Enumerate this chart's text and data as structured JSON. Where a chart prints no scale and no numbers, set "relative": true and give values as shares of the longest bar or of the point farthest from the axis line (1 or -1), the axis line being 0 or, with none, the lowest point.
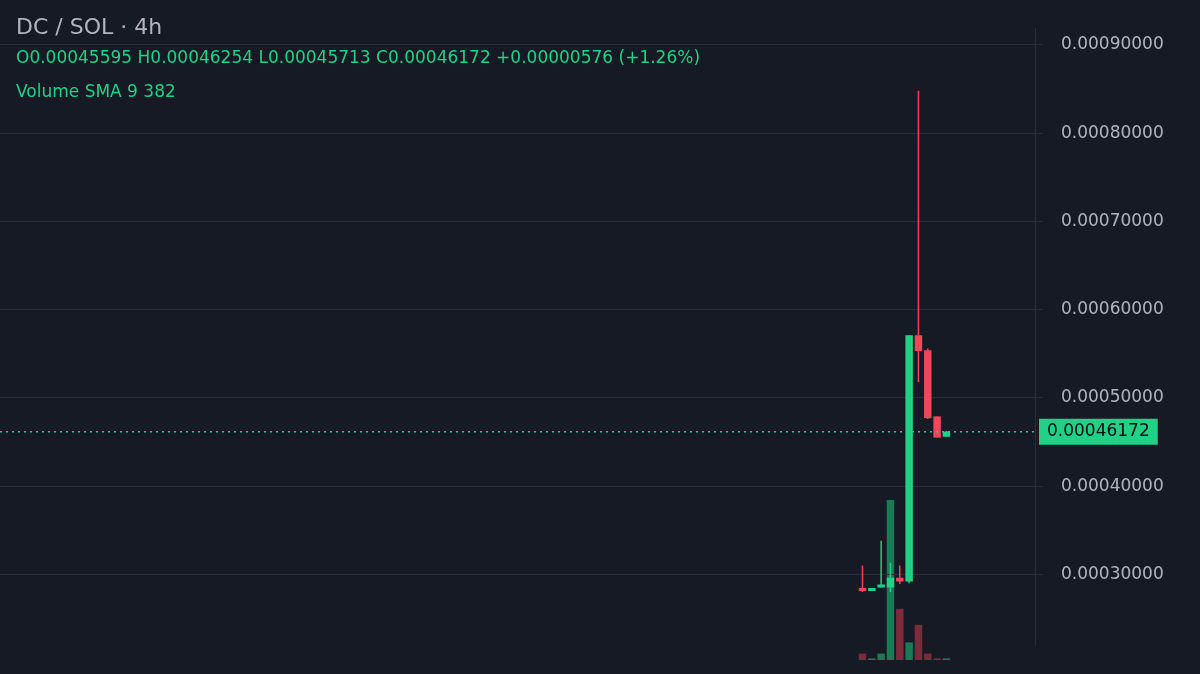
{
  "chart_data": [
    {
      "type": "candlestick",
      "title": "DC / SOL · 4h",
      "annotations": [
        "O0.00045595 H0.00046254 L0.00045713 C0.00046172 +0.00000576 (+1.26%)",
        "Volume SMA 9 382"
      ],
      "categories": [
        null,
        null,
        null,
        null,
        null,
        null,
        null,
        null,
        null,
        null,
        null,
        null,
        null,
        null,
        null,
        null,
        null,
        null,
        null,
        null,
        null,
        null,
        null,
        null,
        null,
        null,
        null,
        null,
        null,
        null,
        null,
        null,
        null,
        null,
        null,
        null,
        null,
        null,
        null,
        null,
        null,
        null,
        null,
        null,
        null,
        null,
        null,
        null,
        null,
        null,
        null,
        null,
        null,
        null,
        null,
        null,
        null,
        null,
        null,
        null,
        null,
        null,
        null,
        null,
        null,
        null,
        null,
        null,
        null,
        null,
        null,
        null,
        null,
        null,
        null,
        null,
        null,
        null,
        null,
        null,
        null,
        null,
        null,
        null,
        null,
        null,
        null,
        null,
        null,
        null,
        null,
        null,
        null,
        null,
        null,
        null,
        null,
        null,
        null,
        null,
        null,
        null,
        null,
        null,
        null,
        null,
        null,
        null,
        null,
        null,
        null
      ],
      "ohlc": [
        null,
        null,
        null,
        null,
        null,
        null,
        null,
        null,
        null,
        null,
        null,
        null,
        null,
        null,
        null,
        null,
        null,
        null,
        null,
        null,
        null,
        null,
        null,
        null,
        null,
        null,
        null,
        null,
        null,
        null,
        null,
        null,
        null,
        null,
        null,
        null,
        null,
        null,
        null,
        null,
        null,
        null,
        null,
        null,
        null,
        null,
        null,
        null,
        null,
        null,
        null,
        null,
        null,
        null,
        null,
        null,
        null,
        null,
        null,
        null,
        null,
        null,
        null,
        null,
        null,
        null,
        null,
        null,
        null,
        null,
        null,
        null,
        null,
        null,
        null,
        null,
        null,
        null,
        null,
        null,
        null,
        null,
        null,
        null,
        null,
        null,
        null,
        null,
        null,
        null,
        null,
        null,
        [
          0.000283,
          0.00031,
          0.00028,
          0.000281
        ],
        [
          0.000281,
          0.000284,
          0.000281,
          0.000284
        ],
        [
          0.000285,
          0.000338,
          0.000285,
          0.000286
        ],
        [
          0.000285,
          0.000313,
          0.00028,
          0.000296
        ],
        [
          0.000296,
          0.00031,
          0.000289,
          0.000292
        ],
        [
          0.000292,
          0.000571,
          0.00029,
          0.000571
        ],
        [
          0.000571,
          0.000848,
          0.000518,
          0.000553
        ],
        [
          0.000554,
          0.000556,
          0.000476,
          0.000477
        ],
        [
          0.000479,
          0.000479,
          0.000455,
          0.000455
        ],
        [
          0.00045595,
          0.00046254,
          0.00045595,
          0.00046172
        ],
        null,
        null,
        null,
        null,
        null,
        null,
        null,
        null,
        null
      ],
      "colors": [
        null,
        null,
        null,
        null,
        null,
        null,
        null,
        null,
        null,
        null,
        null,
        null,
        null,
        null,
        null,
        null,
        null,
        null,
        null,
        null,
        null,
        null,
        null,
        null,
        null,
        null,
        null,
        null,
        null,
        null,
        null,
        null,
        null,
        null,
        null,
        null,
        null,
        null,
        null,
        null,
        null,
        null,
        null,
        null,
        null,
        null,
        null,
        null,
        null,
        null,
        null,
        null,
        null,
        null,
        null,
        null,
        null,
        null,
        null,
        null,
        null,
        null,
        null,
        null,
        null,
        null,
        null,
        null,
        null,
        null,
        null,
        null,
        null,
        null,
        null,
        null,
        null,
        null,
        null,
        null,
        null,
        null,
        null,
        null,
        null,
        null,
        null,
        null,
        null,
        null,
        null,
        null,
        "#f0475a",
        "#22d086",
        "#22d086",
        "#22d086",
        "#f0475a",
        "#22d086",
        "#f0475a",
        "#f0475a",
        "#f0475a",
        "#22d086",
        null,
        null,
        null,
        null,
        null,
        null,
        null,
        null,
        null
      ],
      "ylim": [
        0.000219,
        0.000919
      ],
      "yticks": [
        {
          "value": 0.0003,
          "label": "0.00030000"
        },
        {
          "value": 0.0004,
          "label": "0.00040000"
        },
        {
          "value": 0.0005,
          "label": "0.00050000"
        },
        {
          "value": 0.0006,
          "label": "0.00060000"
        },
        {
          "value": 0.0007,
          "label": "0.00070000"
        },
        {
          "value": 0.0008,
          "label": "0.00080000"
        },
        {
          "value": 0.0009,
          "label": "0.00090000"
        }
      ],
      "ref_lines": [
        {
          "axis": "y",
          "value": 0.00046172,
          "label": "0.00046172",
          "color": "#22d086",
          "line_style": "dotted"
        }
      ],
      "grid": "y",
      "legend": false,
      "tick_labels": "y"
    },
    {
      "type": "bar",
      "relative": true,
      "categories": [
        null,
        null,
        null,
        null,
        null,
        null,
        null,
        null,
        null,
        null,
        null,
        null,
        null,
        null,
        null,
        null,
        null,
        null,
        null,
        null,
        null,
        null,
        null,
        null,
        null,
        null,
        null,
        null,
        null,
        null,
        null,
        null,
        null,
        null,
        null,
        null,
        null,
        null,
        null,
        null,
        null,
        null,
        null,
        null,
        null,
        null,
        null,
        null,
        null,
        null,
        null,
        null,
        null,
        null,
        null,
        null,
        null,
        null,
        null,
        null,
        null,
        null,
        null,
        null,
        null,
        null,
        null,
        null,
        null,
        null,
        null,
        null,
        null,
        null,
        null,
        null,
        null,
        null,
        null,
        null,
        null,
        null,
        null,
        null,
        null,
        null,
        null,
        null,
        null,
        null,
        null,
        null,
        null,
        null,
        null,
        null,
        null,
        null,
        null,
        null,
        null,
        null,
        null,
        null,
        null,
        null,
        null,
        null,
        null,
        null,
        null
      ],
      "colors": [
        null,
        null,
        null,
        null,
        null,
        null,
        null,
        null,
        null,
        null,
        null,
        null,
        null,
        null,
        null,
        null,
        null,
        null,
        null,
        null,
        null,
        null,
        null,
        null,
        null,
        null,
        null,
        null,
        null,
        null,
        null,
        null,
        null,
        null,
        null,
        null,
        null,
        null,
        null,
        null,
        null,
        null,
        null,
        null,
        null,
        null,
        null,
        null,
        null,
        null,
        null,
        null,
        null,
        null,
        null,
        null,
        null,
        null,
        null,
        null,
        null,
        null,
        null,
        null,
        null,
        null,
        null,
        null,
        null,
        null,
        null,
        null,
        null,
        null,
        null,
        null,
        null,
        null,
        null,
        null,
        null,
        null,
        null,
        null,
        null,
        null,
        null,
        null,
        null,
        null,
        null,
        null,
        "#7d2a3c",
        "#1d7a57",
        "#1d7a57",
        "#1d7a57",
        "#7d2a3c",
        "#1d7a57",
        "#7d2a3c",
        "#7d2a3c",
        "#7d2a3c",
        "#1d7a57",
        null,
        null,
        null,
        null,
        null,
        null,
        null,
        null,
        null
      ],
      "values": [
        null,
        null,
        null,
        null,
        null,
        null,
        null,
        null,
        null,
        null,
        null,
        null,
        null,
        null,
        null,
        null,
        null,
        null,
        null,
        null,
        null,
        null,
        null,
        null,
        null,
        null,
        null,
        null,
        null,
        null,
        null,
        null,
        null,
        null,
        null,
        null,
        null,
        null,
        null,
        null,
        null,
        null,
        null,
        null,
        null,
        null,
        null,
        null,
        null,
        null,
        null,
        null,
        null,
        null,
        null,
        null,
        null,
        null,
        null,
        null,
        null,
        null,
        null,
        null,
        null,
        null,
        null,
        null,
        null,
        null,
        null,
        null,
        null,
        null,
        null,
        null,
        null,
        null,
        null,
        null,
        null,
        null,
        null,
        null,
        null,
        null,
        null,
        null,
        null,
        null,
        null,
        null,
        0.04,
        0.01,
        0.04,
        1,
        0.32,
        0.11,
        0.22,
        0.04,
        0.01,
        0.01,
        null,
        null,
        null,
        null,
        null,
        null,
        null,
        null,
        null
      ],
      "legend": false
    }
  ]
}
